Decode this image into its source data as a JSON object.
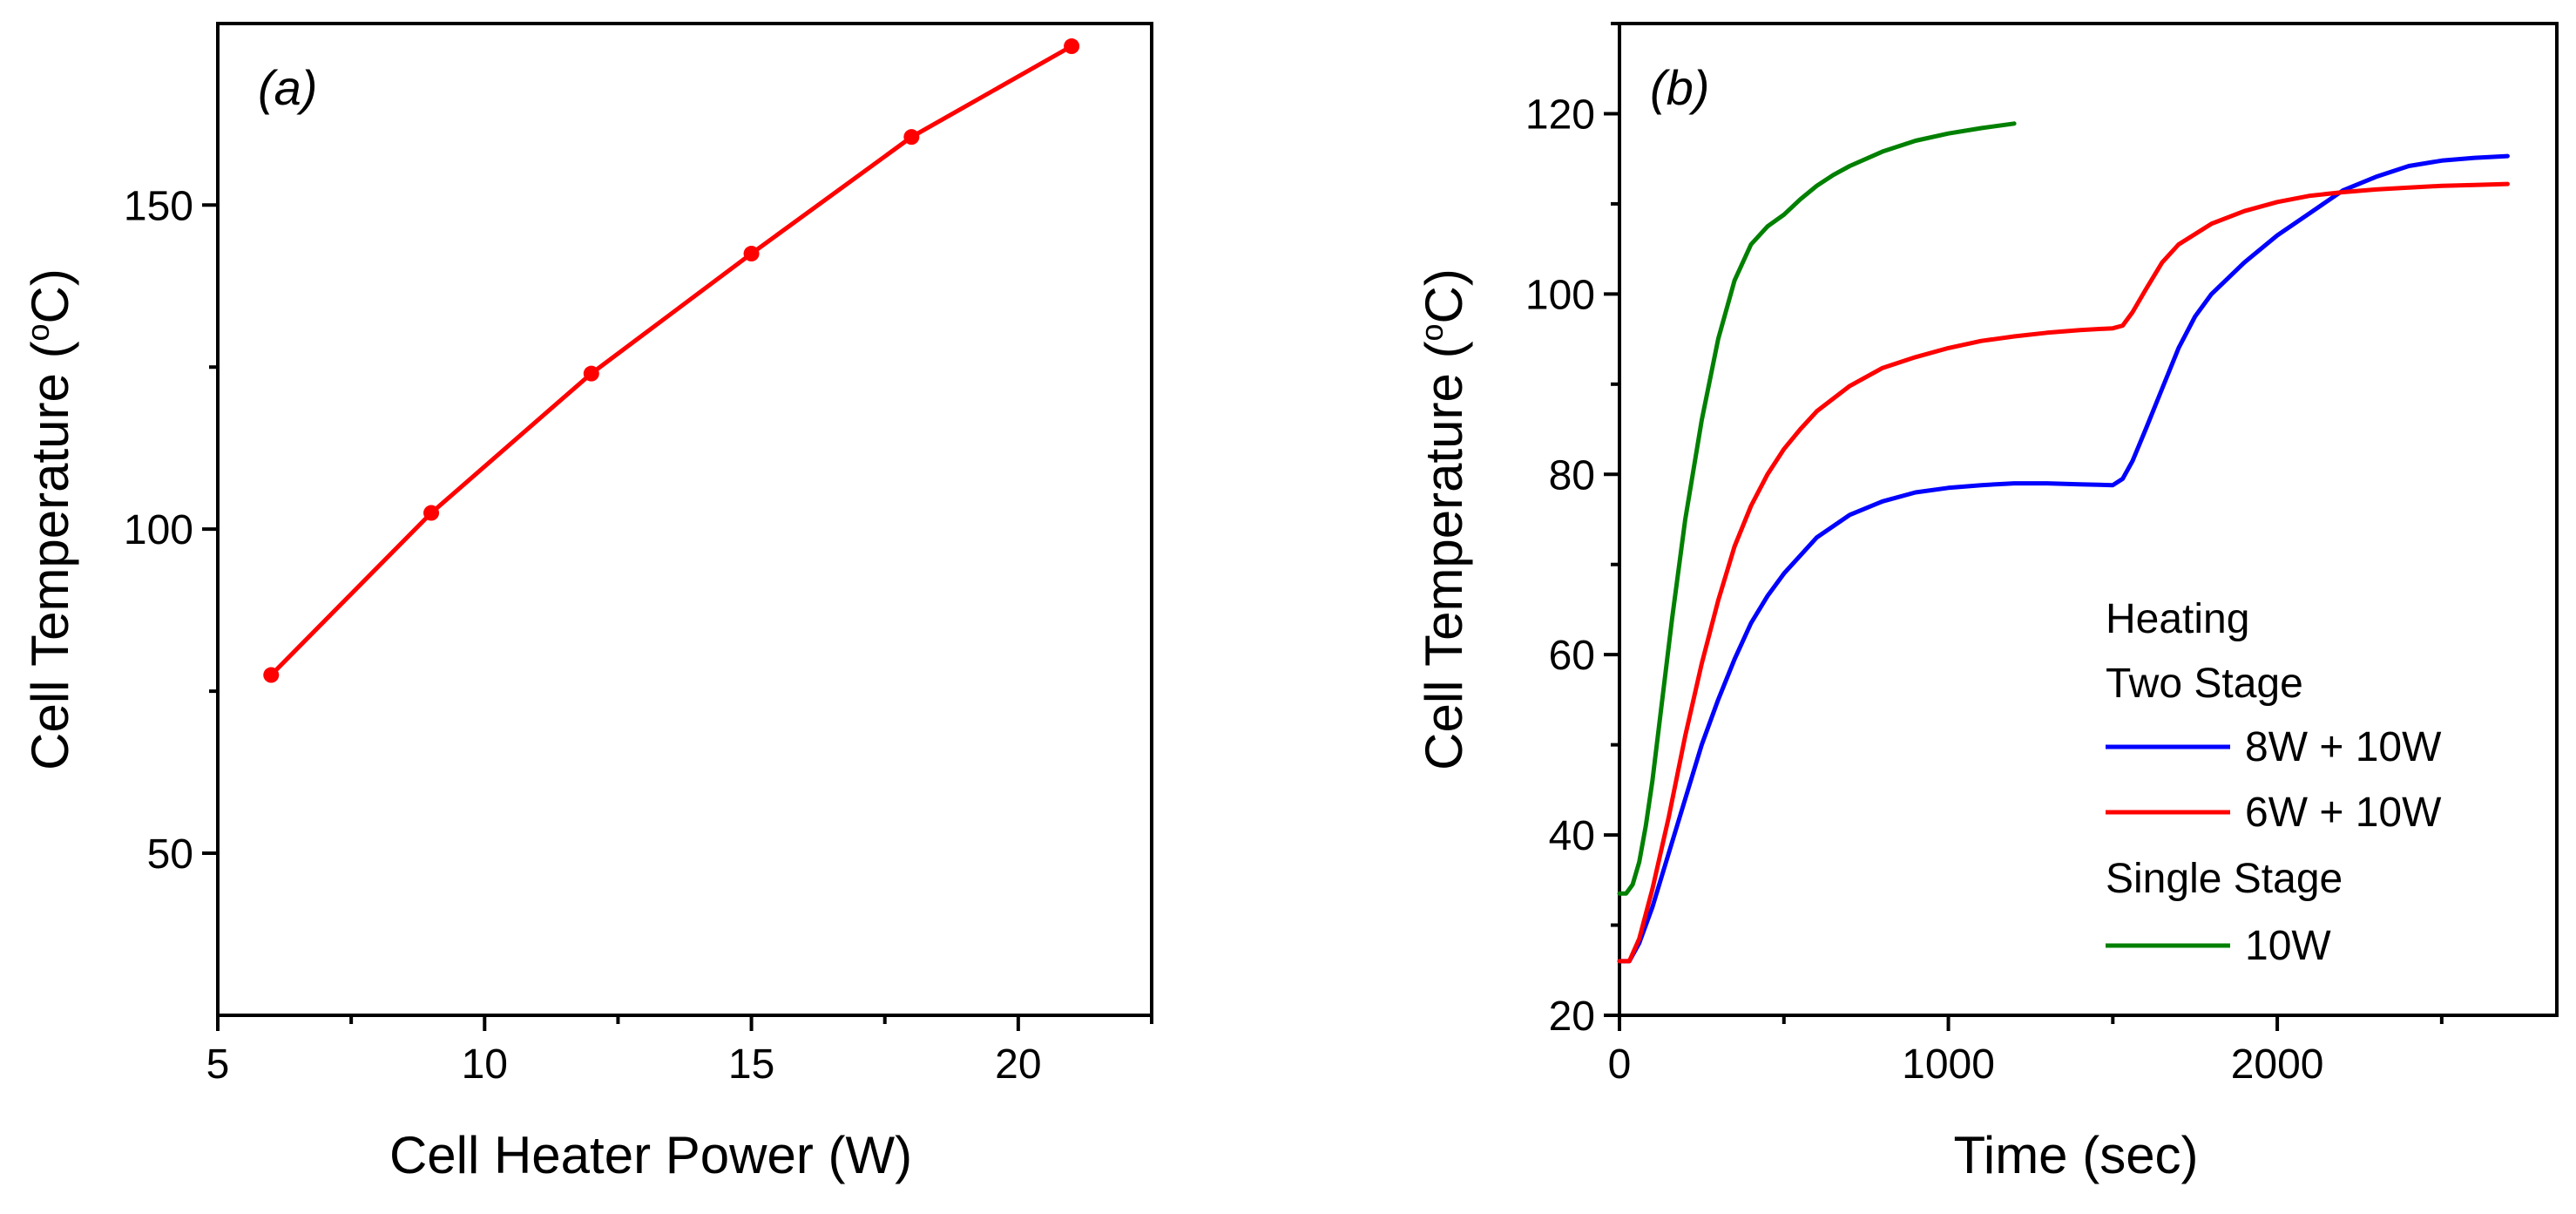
{
  "colors": {
    "axis": "#000000",
    "red": "#ff0000",
    "blue": "#0000ff",
    "green": "#008000"
  },
  "chart_data": [
    {
      "type": "line",
      "panel_label": "(a)",
      "xlabel": "Cell Heater Power (W)",
      "ylabel_prefix": "Cell Temperature (",
      "ylabel_unit_sup": "o",
      "ylabel_suffix": "C)",
      "xlim": [
        5,
        22.5
      ],
      "ylim": [
        25,
        178
      ],
      "xticks": [
        5,
        10,
        15,
        20
      ],
      "xminor": [
        7.5,
        12.5,
        17.5,
        22.5
      ],
      "yticks": [
        50,
        100,
        150
      ],
      "yminor": [
        75,
        125
      ],
      "grid": false,
      "series": [
        {
          "name": "Cell Temperature",
          "color": "#ff0000",
          "markers": true,
          "x": [
            6,
            9,
            12,
            15,
            18,
            21
          ],
          "y": [
            77.5,
            102.5,
            124,
            142.5,
            160.5,
            174.5
          ]
        }
      ]
    },
    {
      "type": "line",
      "panel_label": "(b)",
      "xlabel": "Time (sec)",
      "ylabel_prefix": "Cell Temperature (",
      "ylabel_unit_sup": "o",
      "ylabel_suffix": "C)",
      "xlim": [
        0,
        2850
      ],
      "ylim": [
        20,
        130
      ],
      "xticks": [
        0,
        1000,
        2000
      ],
      "xminor": [
        500,
        1500,
        2500
      ],
      "yticks": [
        20,
        40,
        60,
        80,
        100,
        120
      ],
      "yminor": [
        30,
        50,
        70,
        90,
        110,
        130
      ],
      "grid": false,
      "legend": {
        "position": "bottom-right",
        "group1_title": "Heating",
        "group1_subtitle": "Two Stage",
        "group2_title": "Single Stage",
        "entries": [
          {
            "label": "8W + 10W",
            "color": "#0000ff"
          },
          {
            "label": "6W + 10W",
            "color": "#ff0000"
          },
          {
            "label": "10W",
            "color": "#008000"
          }
        ]
      },
      "series": [
        {
          "name": "8W + 10W",
          "color": "#0000ff",
          "x": [
            0,
            30,
            60,
            100,
            150,
            200,
            250,
            300,
            350,
            400,
            450,
            500,
            550,
            600,
            700,
            800,
            900,
            1000,
            1100,
            1200,
            1300,
            1400,
            1500,
            1530,
            1560,
            1600,
            1650,
            1700,
            1750,
            1800,
            1900,
            2000,
            2100,
            2200,
            2300,
            2400,
            2500,
            2600,
            2700
          ],
          "y": [
            26,
            26,
            28,
            32,
            38,
            44,
            50,
            55,
            59.5,
            63.5,
            66.5,
            69,
            71,
            73,
            75.5,
            77,
            78,
            78.5,
            78.8,
            79,
            79,
            78.9,
            78.8,
            79.5,
            81.5,
            85,
            89.5,
            94,
            97.5,
            100,
            103.5,
            106.5,
            109,
            111.5,
            113,
            114.2,
            114.8,
            115.1,
            115.3
          ]
        },
        {
          "name": "6W + 10W",
          "color": "#ff0000",
          "x": [
            0,
            30,
            60,
            100,
            150,
            200,
            250,
            300,
            350,
            400,
            450,
            500,
            550,
            600,
            700,
            800,
            900,
            1000,
            1100,
            1200,
            1300,
            1400,
            1500,
            1530,
            1560,
            1600,
            1650,
            1700,
            1800,
            1900,
            2000,
            2100,
            2200,
            2300,
            2400,
            2500,
            2600,
            2700
          ],
          "y": [
            26,
            26,
            28.5,
            34,
            42,
            51,
            59,
            66,
            72,
            76.5,
            80,
            82.8,
            85,
            87,
            89.8,
            91.8,
            93,
            94,
            94.8,
            95.3,
            95.7,
            96,
            96.2,
            96.5,
            98,
            100.5,
            103.5,
            105.5,
            107.8,
            109.2,
            110.2,
            110.9,
            111.3,
            111.6,
            111.8,
            112,
            112.1,
            112.2
          ]
        },
        {
          "name": "10W",
          "color": "#008000",
          "x": [
            0,
            20,
            40,
            60,
            80,
            100,
            130,
            160,
            200,
            250,
            300,
            350,
            400,
            450,
            500,
            550,
            600,
            650,
            700,
            800,
            900,
            1000,
            1100,
            1200
          ],
          "y": [
            33.5,
            33.5,
            34.5,
            37,
            41,
            46,
            55,
            64,
            75,
            86,
            95,
            101.5,
            105.5,
            107.5,
            108.8,
            110.5,
            112,
            113.2,
            114.2,
            115.8,
            117,
            117.8,
            118.4,
            118.9
          ]
        }
      ]
    }
  ]
}
